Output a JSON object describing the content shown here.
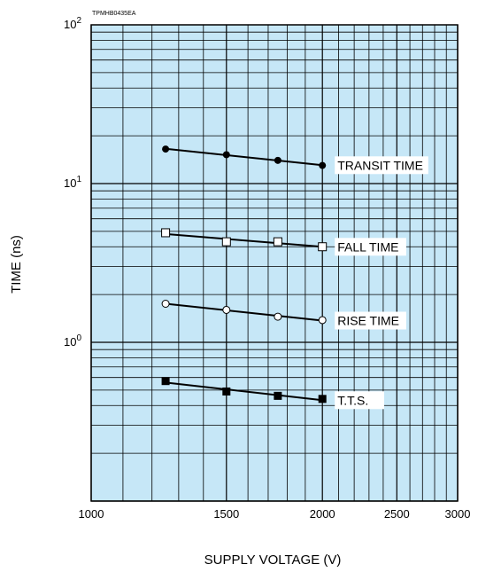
{
  "chart_data": {
    "type": "line",
    "figure_code": "TPMHB0435EA",
    "xlabel": "SUPPLY VOLTAGE (V)",
    "ylabel": "TIME (ns)",
    "x_scale": "log",
    "y_scale": "log",
    "xlim": [
      1000,
      3000
    ],
    "ylim": [
      0.1,
      100
    ],
    "x_ticks": [
      "1000",
      "1500",
      "2000",
      "2500",
      "3000"
    ],
    "y_ticks": [
      {
        "base": "10",
        "exp": "0"
      },
      {
        "base": "10",
        "exp": "1"
      },
      {
        "base": "10",
        "exp": "2"
      }
    ],
    "grid": true,
    "plot_background": "#c6e7f7",
    "series": [
      {
        "name": "TRANSIT TIME",
        "marker": "filled-circle",
        "x": [
          1250,
          1500,
          1750,
          2000
        ],
        "y": [
          16.5,
          15.2,
          14.0,
          13.0
        ]
      },
      {
        "name": "FALL TIME",
        "marker": "open-square",
        "x": [
          1250,
          1500,
          1750,
          2000
        ],
        "y": [
          4.9,
          4.3,
          4.3,
          4.0
        ]
      },
      {
        "name": "RISE TIME",
        "marker": "open-circle",
        "x": [
          1250,
          1500,
          1750,
          2000
        ],
        "y": [
          1.75,
          1.6,
          1.45,
          1.38
        ]
      },
      {
        "name": "T.T.S.",
        "marker": "filled-square",
        "x": [
          1250,
          1500,
          1750,
          2000
        ],
        "y": [
          0.57,
          0.49,
          0.46,
          0.44
        ]
      }
    ]
  }
}
